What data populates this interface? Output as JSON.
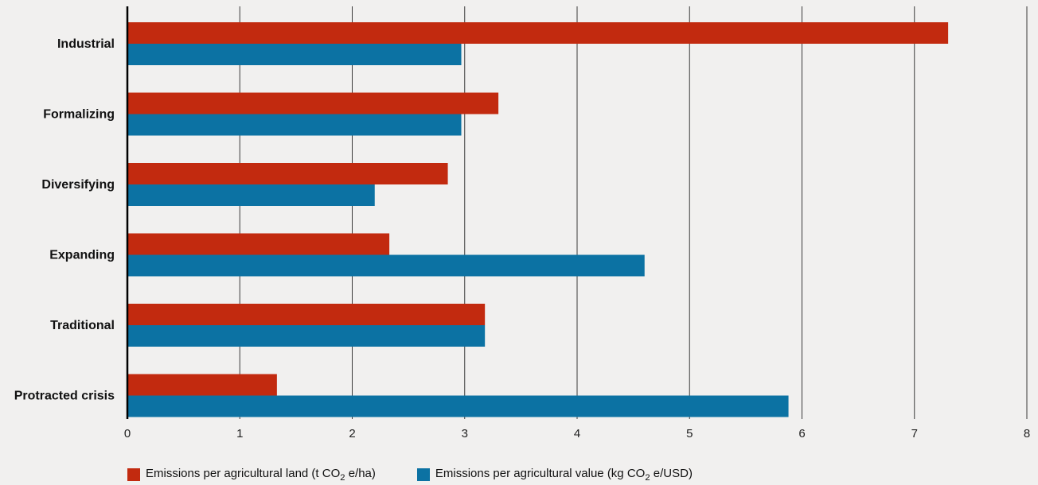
{
  "chart_data": {
    "type": "bar",
    "orientation": "horizontal",
    "categories": [
      "Industrial",
      "Formalizing",
      "Diversifying",
      "Expanding",
      "Traditional",
      "Protracted crisis"
    ],
    "series": [
      {
        "name": "Emissions per agricultural land (t CO2 e/ha)",
        "name_parts": [
          "Emissions per agricultural land (t CO",
          "2",
          " e/ha)"
        ],
        "color": "#c22a0f",
        "values": [
          7.3,
          3.3,
          2.85,
          2.33,
          3.18,
          1.33
        ]
      },
      {
        "name": "Emissions per agricultural value (kg CO2 e/USD)",
        "name_parts": [
          "Emissions per agricultural value (kg CO",
          "2",
          " e/USD)"
        ],
        "color": "#0c72a3",
        "values": [
          2.97,
          2.97,
          2.2,
          4.6,
          3.18,
          5.88
        ]
      }
    ],
    "xlim": [
      0,
      8
    ],
    "xticks": [
      "0",
      "1",
      "2",
      "3",
      "4",
      "5",
      "6",
      "7",
      "8"
    ],
    "grid": "vertical",
    "legend_position": "bottom",
    "title": "",
    "xlabel": "",
    "ylabel": ""
  }
}
